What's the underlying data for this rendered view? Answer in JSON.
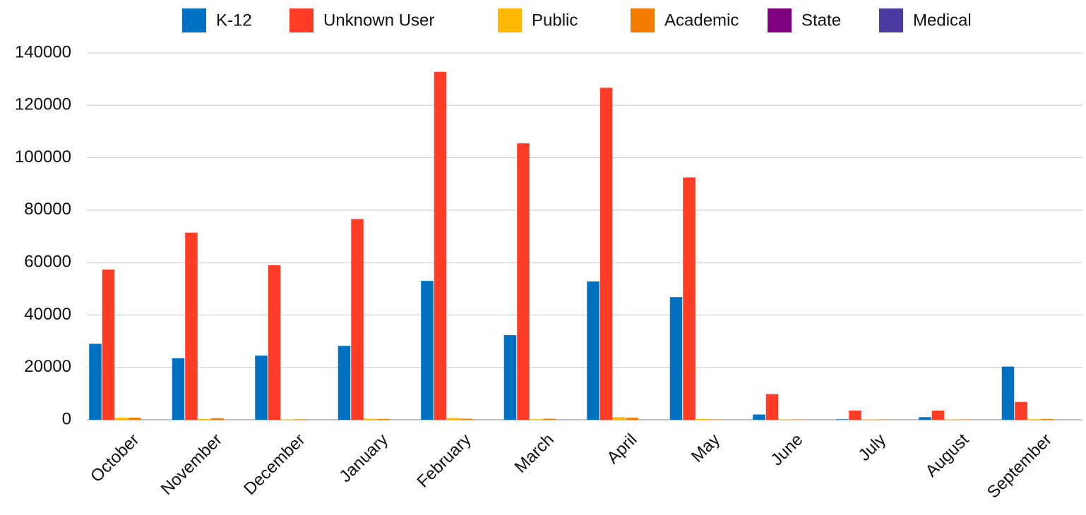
{
  "chart_data": {
    "type": "bar",
    "categories": [
      "October",
      "November",
      "December",
      "January",
      "February",
      "March",
      "April",
      "May",
      "June",
      "July",
      "August",
      "September"
    ],
    "series": [
      {
        "name": "K-12",
        "color": "#0070c0",
        "values": [
          29000,
          23500,
          24500,
          28200,
          53000,
          32300,
          52800,
          46800,
          2000,
          200,
          1000,
          20300
        ]
      },
      {
        "name": "Unknown User",
        "color": "#ff3c26",
        "values": [
          57300,
          71400,
          59000,
          76600,
          132800,
          105500,
          126700,
          92500,
          9800,
          3500,
          3500,
          6800
        ]
      },
      {
        "name": "Public",
        "color": "#ffb900",
        "values": [
          800,
          300,
          100,
          400,
          700,
          200,
          1000,
          300,
          100,
          100,
          100,
          200
        ]
      },
      {
        "name": "Academic",
        "color": "#f47b00",
        "values": [
          800,
          600,
          200,
          300,
          400,
          400,
          800,
          100,
          100,
          100,
          100,
          300
        ]
      },
      {
        "name": "State",
        "color": "#800080",
        "values": [
          20,
          10,
          10,
          10,
          20,
          10,
          20,
          10,
          0,
          0,
          0,
          10
        ]
      },
      {
        "name": "Medical",
        "color": "#4b3a9f",
        "values": [
          10,
          10,
          0,
          10,
          10,
          10,
          10,
          0,
          0,
          0,
          0,
          0
        ]
      }
    ],
    "ylim": [
      0,
      140000
    ],
    "yticks": [
      0,
      20000,
      40000,
      60000,
      80000,
      100000,
      120000,
      140000
    ],
    "grid": true,
    "legend": "top"
  }
}
